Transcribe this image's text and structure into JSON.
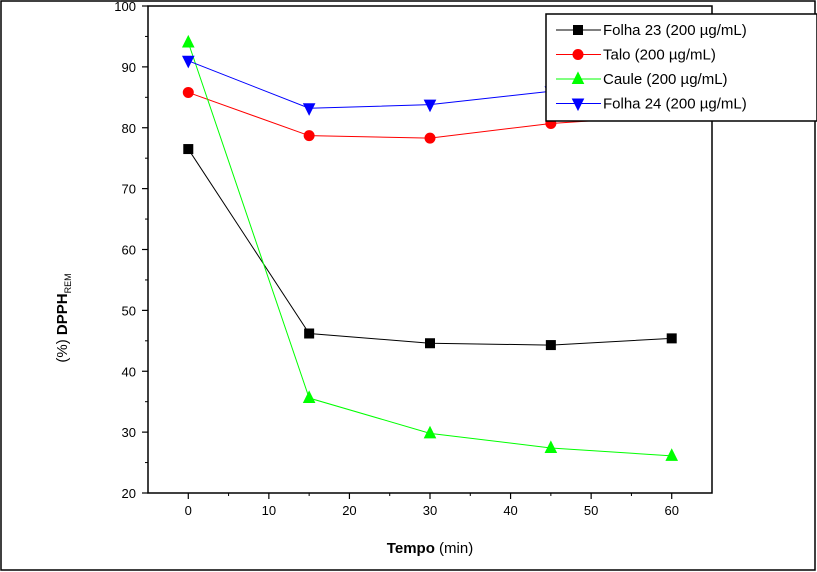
{
  "chart_data": {
    "type": "line",
    "x": [
      0,
      15,
      30,
      45,
      60
    ],
    "xlabel": {
      "bold": "Tempo",
      "rest": " (min)"
    },
    "ylabel": {
      "prefix": "(%) ",
      "bold": "DPPH",
      "sub": "REM"
    },
    "xlim": [
      -5,
      65
    ],
    "ylim": [
      20,
      100
    ],
    "xticks": [
      0,
      10,
      20,
      30,
      40,
      50,
      60
    ],
    "yticks": [
      20,
      30,
      40,
      50,
      60,
      70,
      80,
      90,
      100
    ],
    "grid": false,
    "legend_position": "top-right",
    "series": [
      {
        "name": "Folha 23 (200 µg/mL)",
        "color": "#000000",
        "marker": "square",
        "values": [
          76.5,
          46.2,
          44.6,
          44.3,
          45.4
        ]
      },
      {
        "name": "Talo (200 µg/mL)",
        "color": "#ff0000",
        "marker": "circle",
        "values": [
          85.8,
          78.7,
          78.3,
          80.7,
          82.0
        ]
      },
      {
        "name": "Caule (200 µg/mL)",
        "color": "#00ff00",
        "marker": "triangle-up",
        "values": [
          94.0,
          35.6,
          29.8,
          27.4,
          26.1
        ]
      },
      {
        "name": "Folha 24 (200 µg/mL)",
        "color": "#0000ff",
        "marker": "triangle-down",
        "values": [
          91.0,
          83.2,
          83.8,
          86.0,
          85.0
        ]
      }
    ]
  }
}
